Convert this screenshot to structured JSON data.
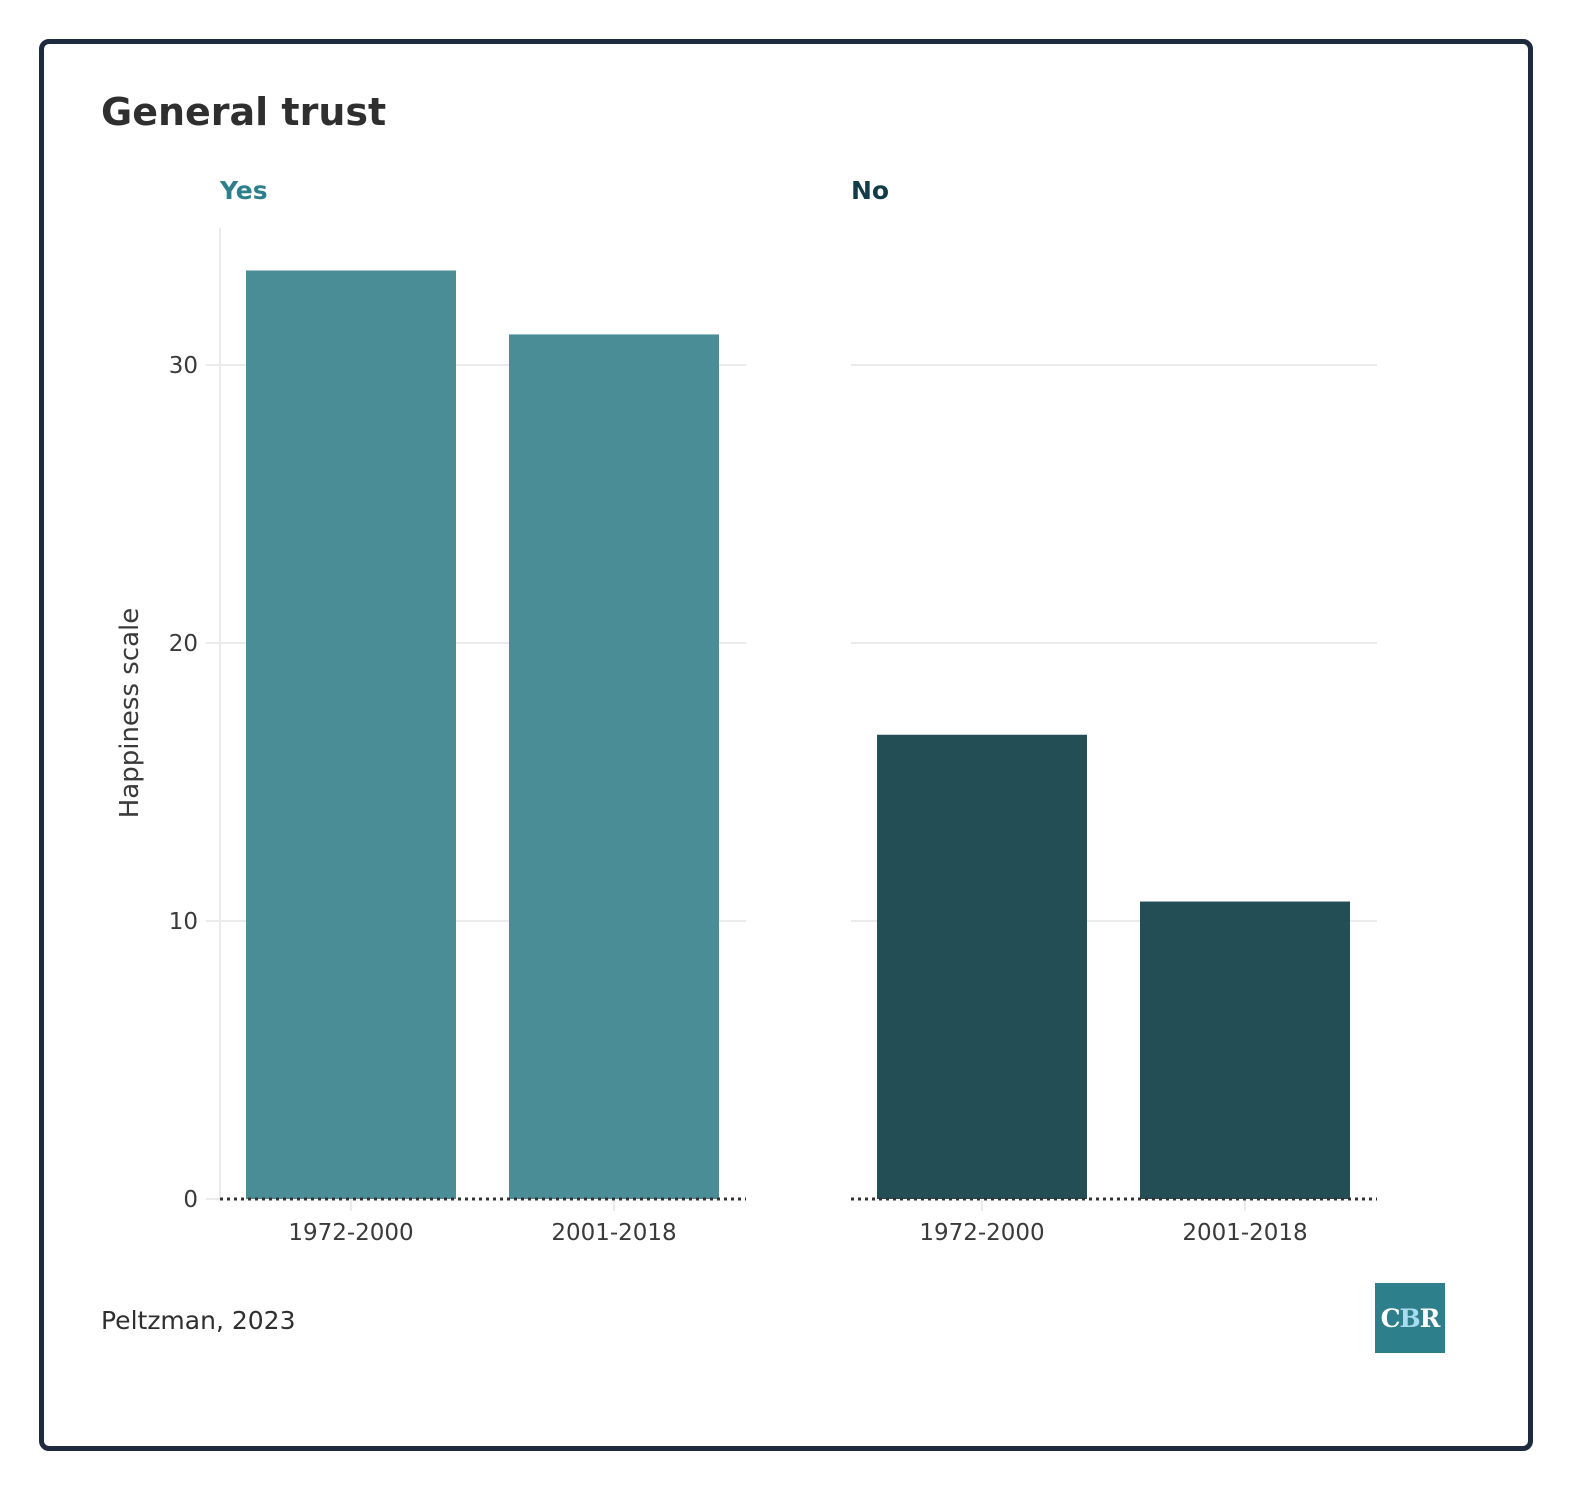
{
  "chart_data": {
    "type": "bar",
    "title": "General trust",
    "ylabel": "Happiness scale",
    "xlabel": "",
    "ylim": [
      0,
      34
    ],
    "yticks": [
      0,
      10,
      20,
      30
    ],
    "categories": [
      "1972-2000",
      "2001-2018"
    ],
    "grid": "horizontal",
    "facets": [
      {
        "label": "Yes",
        "color": "#4a8d97",
        "values": [
          33.4,
          31.1
        ]
      },
      {
        "label": "No",
        "color": "#234e56",
        "values": [
          16.7,
          10.7
        ]
      }
    ],
    "source": "Peltzman, 2023"
  },
  "logo": {
    "c": "C",
    "b": "B",
    "r": "R"
  },
  "colors": {
    "border": "#1e2a3e",
    "grid": "#ebebeb",
    "baseline": "#333333",
    "yes_label": "#2e7f8c",
    "no_label": "#123c47"
  }
}
